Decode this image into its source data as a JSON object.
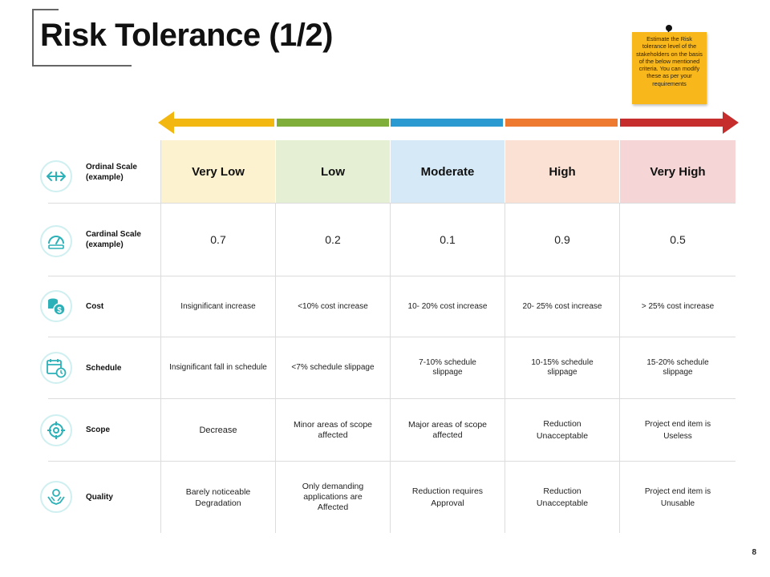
{
  "slide": {
    "title": "Risk Tolerance (1/2)",
    "note": "Estimate the Risk tolerance level of the stakeholders on the basis of the below mentioned criteria. You can modify these as per your requirements",
    "page_number": "8"
  },
  "colors": {
    "arrow": [
      "#f3b711",
      "#7fae3a",
      "#2b9ad1",
      "#ee7a32",
      "#c62d2d"
    ],
    "header_bg": [
      "#fdf2cf",
      "#e4efd3",
      "#d5e9f6",
      "#fbe1d3",
      "#f5d5d5"
    ],
    "icon_teal": "#2bb1b7",
    "note_yellow": "#f8b71b"
  },
  "levels": [
    "Very Low",
    "Low",
    "Moderate",
    "High",
    "Very High"
  ],
  "rows": [
    {
      "label": "Ordinal Scale (example)",
      "icon": "horizontal-arrows-icon"
    },
    {
      "label": "Cardinal Scale (example)",
      "icon": "gauge-icon",
      "cells": [
        "0.7",
        "0.2",
        "0.1",
        "0.9",
        "0.5"
      ]
    },
    {
      "label": "Cost",
      "icon": "coins-dollar-icon",
      "cells": [
        "Insignificant increase",
        "<10% cost increase",
        "10- 20% cost increase",
        "20- 25% cost increase",
        "> 25% cost increase"
      ]
    },
    {
      "label": "Schedule",
      "icon": "calendar-clock-icon",
      "cells": [
        "Insignificant fall in schedule",
        "<7% schedule slippage",
        "7-10% schedule slippage",
        "10-15% schedule slippage",
        "15-20% schedule slippage"
      ]
    },
    {
      "label": "Scope",
      "icon": "target-icon",
      "cells": [
        "Decrease",
        "Minor areas of scope affected",
        "Major areas of scope affected",
        "Reduction Unacceptable",
        "Project end item is Useless"
      ]
    },
    {
      "label": "Quality",
      "icon": "quality-hands-icon",
      "cells": [
        "Barely noticeable Degradation",
        "Only demanding applications are Affected",
        "Reduction requires Approval",
        "Reduction Unacceptable",
        "Project end item is Unusable"
      ]
    }
  ]
}
